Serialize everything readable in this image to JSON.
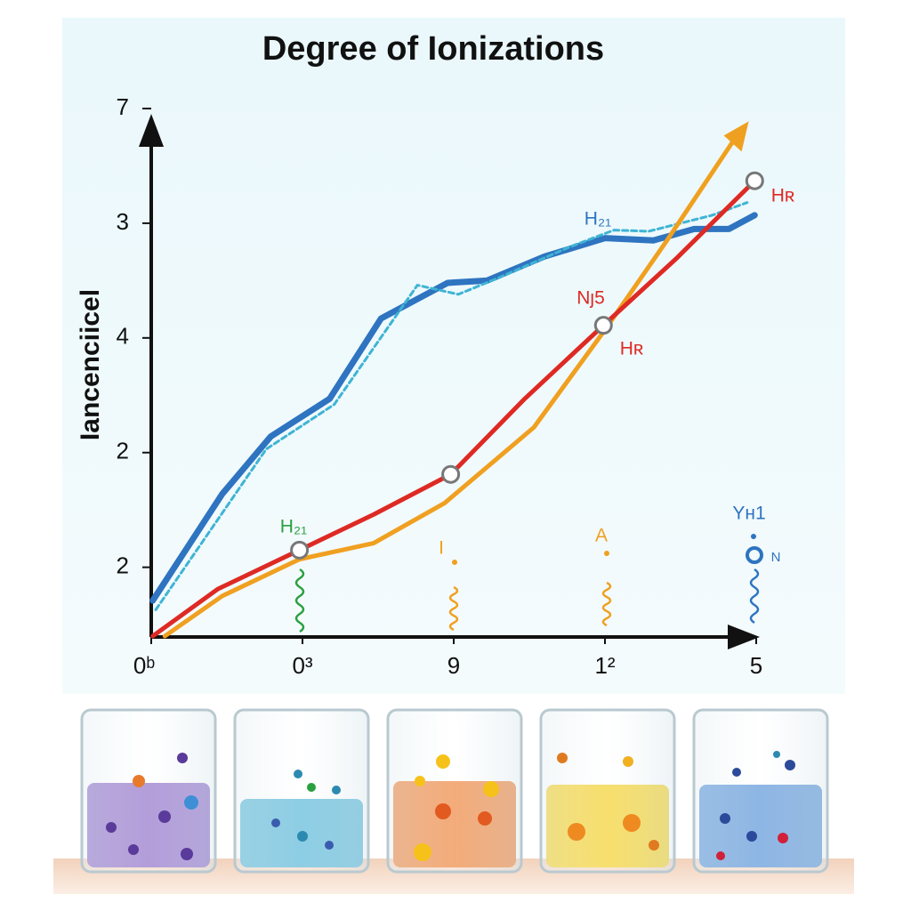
{
  "chart_data": {
    "type": "line",
    "title": "Degree of Ionizations",
    "y_label": "Iancenciicel",
    "xlim": [
      0,
      4
    ],
    "ylim": [
      0,
      4.6
    ],
    "xticks": [
      {
        "value": 0,
        "label": "0ᵇ"
      },
      {
        "value": 1,
        "label": "0³"
      },
      {
        "value": 2,
        "label": "9"
      },
      {
        "value": 3,
        "label": "1²"
      },
      {
        "value": 4,
        "label": "5"
      }
    ],
    "yticks": [
      {
        "value": 0.6,
        "label": "2"
      },
      {
        "value": 1.6,
        "label": "2"
      },
      {
        "value": 2.6,
        "label": "4"
      },
      {
        "value": 3.6,
        "label": "3"
      },
      {
        "value": 4.6,
        "label": "7"
      }
    ],
    "series": [
      {
        "color": "#2e74c0",
        "width": 7,
        "dashed": false,
        "x": [
          0.01,
          0.47,
          0.79,
          1.18,
          1.52,
          1.96,
          2.22,
          2.6,
          3.0,
          3.32,
          3.59,
          3.82,
          3.99
        ],
        "values": [
          0.31,
          1.24,
          1.74,
          2.07,
          2.77,
          3.08,
          3.1,
          3.31,
          3.47,
          3.45,
          3.55,
          3.55,
          3.67
        ]
      },
      {
        "color": "#3fb4d4",
        "width": 3,
        "dashed": true,
        "x": [
          0.03,
          0.76,
          1.21,
          1.76,
          2.03,
          2.29,
          2.76,
          3.06,
          3.29,
          3.71,
          3.94
        ],
        "values": [
          0.23,
          1.63,
          2.02,
          3.06,
          2.98,
          3.12,
          3.39,
          3.54,
          3.53,
          3.67,
          3.78
        ]
      },
      {
        "color": "#f0a020",
        "width": 5,
        "dashed": false,
        "x": [
          0.09,
          0.47,
          0.98,
          1.47,
          1.94,
          2.53,
          3.0,
          3.41,
          3.88
        ],
        "values": [
          0,
          0.35,
          0.67,
          0.81,
          1.16,
          1.82,
          2.67,
          3.45,
          4.38
        ]
      },
      {
        "color": "#de2a24",
        "width": 5,
        "dashed": false,
        "x": [
          0.01,
          0.44,
          0.98,
          1.47,
          1.98,
          2.47,
          2.99,
          3.47,
          3.99
        ],
        "values": [
          0,
          0.41,
          0.75,
          1.06,
          1.41,
          2.07,
          2.71,
          3.29,
          3.97
        ]
      }
    ],
    "annotations": [
      {
        "text": "H₂₁",
        "color": "#2e74c0"
      },
      {
        "text": "Hʀ",
        "color": "#de2a24"
      },
      {
        "text": "Nȷ5",
        "color": "#de2a24"
      },
      {
        "text": "Hʀ",
        "color": "#de2a24"
      },
      {
        "text": "H₂₁",
        "color": "#2aa040"
      },
      {
        "text": "I",
        "color": "#f0a020"
      },
      {
        "text": "A",
        "color": "#f0a020"
      },
      {
        "text": "Yн1",
        "color": "#2e74c0"
      },
      {
        "text": "N",
        "color": "#2e74c0"
      }
    ]
  }
}
